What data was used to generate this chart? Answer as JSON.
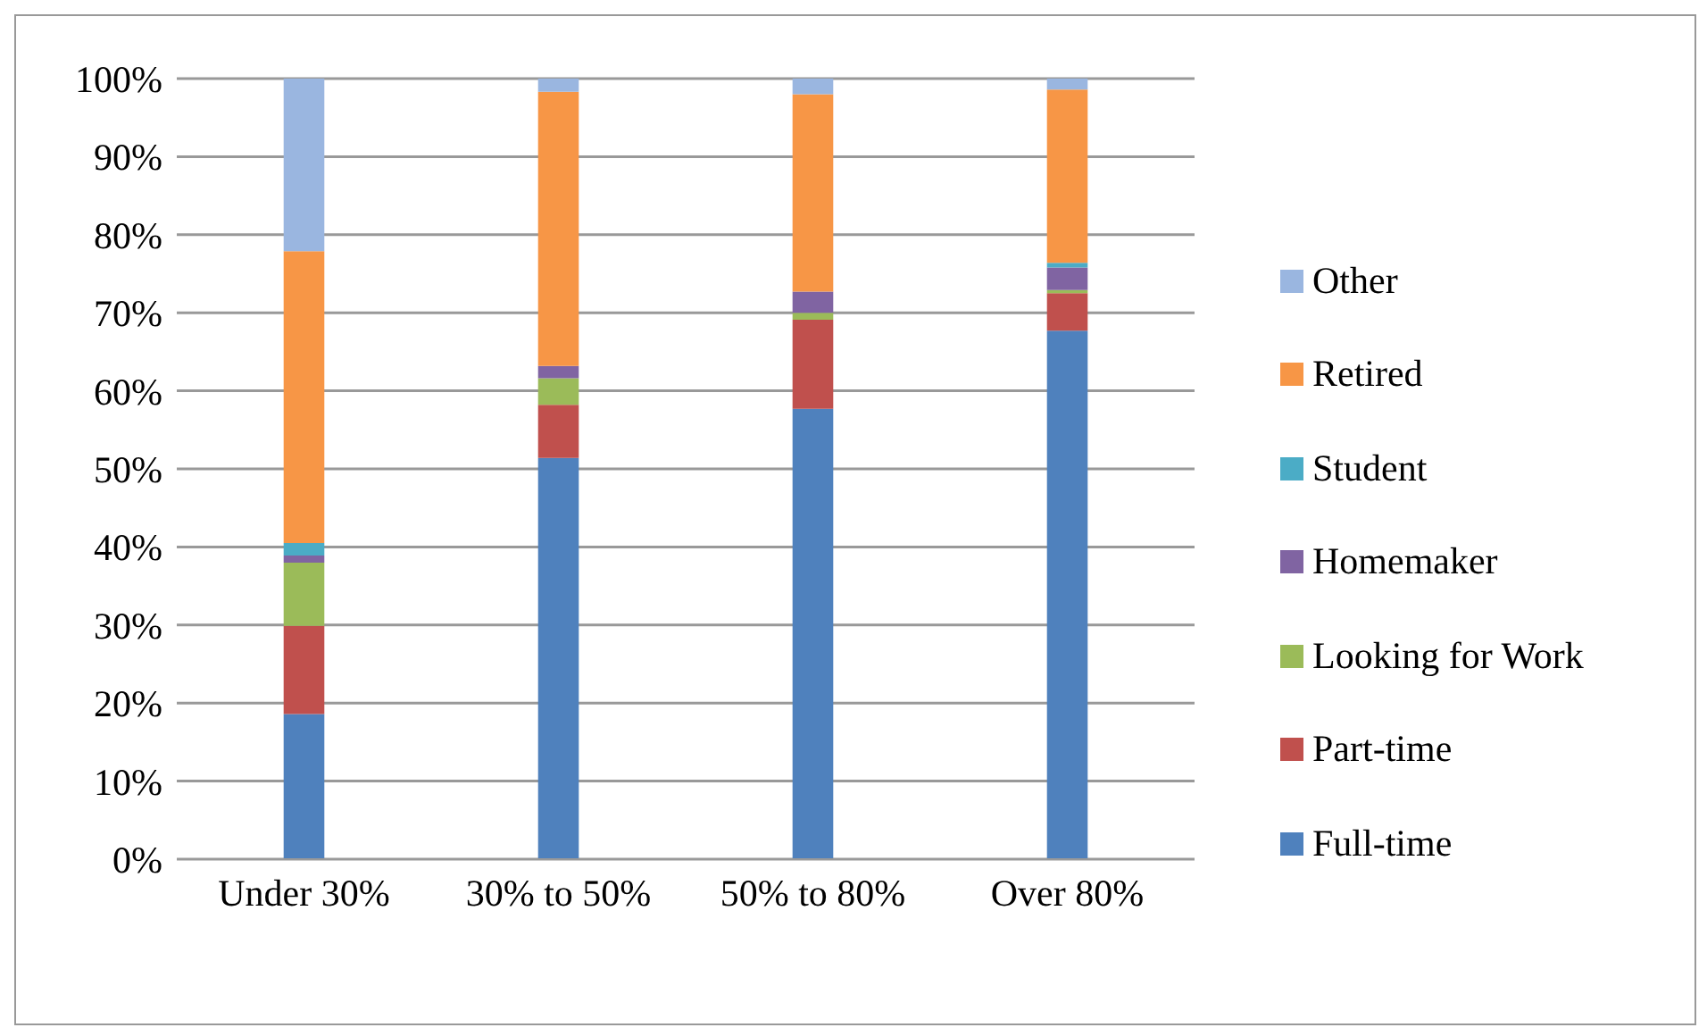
{
  "chart_data": {
    "type": "bar",
    "stacked": true,
    "categories": [
      "Under 30%",
      "30% to 50%",
      "50% to 80%",
      "Over 80%"
    ],
    "series": [
      {
        "name": "Full-time",
        "color": "#4f81bd",
        "values": [
          18.6,
          51.4,
          57.7,
          67.7
        ]
      },
      {
        "name": "Part-time",
        "color": "#c0504d",
        "values": [
          11.3,
          6.8,
          11.4,
          4.8
        ]
      },
      {
        "name": "Looking for Work",
        "color": "#9bbb59",
        "values": [
          8.1,
          3.4,
          0.9,
          0.4
        ]
      },
      {
        "name": "Homemaker",
        "color": "#8064a2",
        "values": [
          0.9,
          1.6,
          2.7,
          2.9
        ]
      },
      {
        "name": "Student",
        "color": "#4bacc6",
        "values": [
          1.6,
          0,
          0,
          0.6
        ]
      },
      {
        "name": "Retired",
        "color": "#f79646",
        "values": [
          37.4,
          35.1,
          25.3,
          22.2
        ]
      },
      {
        "name": "Other",
        "color": "#9ab6e0",
        "values": [
          22.1,
          1.7,
          2.0,
          1.4
        ]
      }
    ],
    "ylim": [
      0,
      100
    ],
    "yticks": [
      {
        "value": 0,
        "label": "0%"
      },
      {
        "value": 10,
        "label": "10%"
      },
      {
        "value": 20,
        "label": "20%"
      },
      {
        "value": 30,
        "label": "30%"
      },
      {
        "value": 40,
        "label": "40%"
      },
      {
        "value": 50,
        "label": "50%"
      },
      {
        "value": 60,
        "label": "60%"
      },
      {
        "value": 70,
        "label": "70%"
      },
      {
        "value": 80,
        "label": "80%"
      },
      {
        "value": 90,
        "label": "90%"
      },
      {
        "value": 100,
        "label": "100%"
      }
    ],
    "grid": "y",
    "legend": "right"
  }
}
